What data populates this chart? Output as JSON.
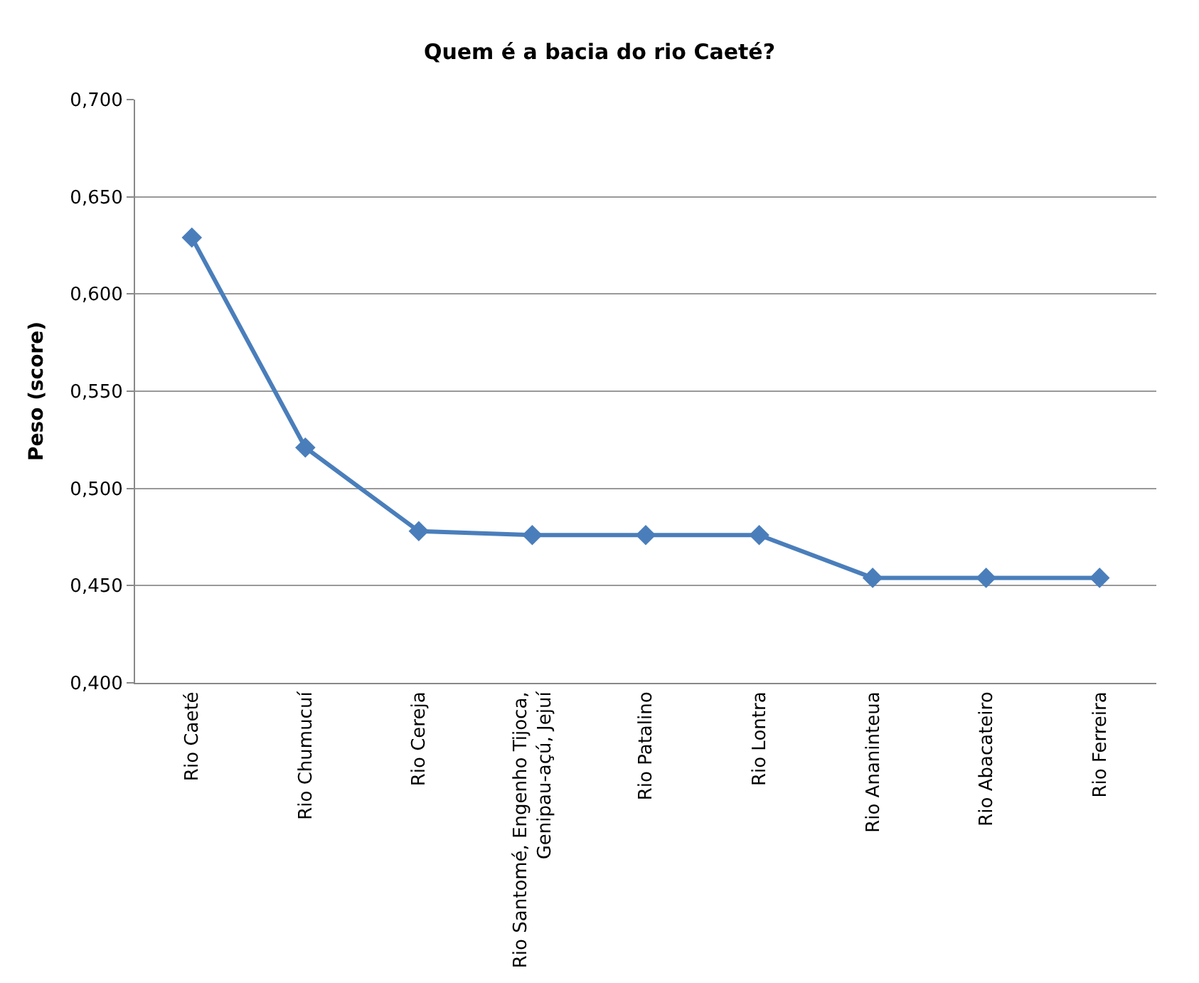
{
  "chart_data": {
    "type": "line",
    "title": "Quem é a bacia do rio Caeté?",
    "ylabel": "Peso (score)",
    "categories": [
      "Rio Caeté",
      "Rio Chumucuí",
      "Rio Cereja",
      "Rio Santomé, Engenho Tijoca,\nGenipau-açú, Jejuí",
      "Rio Patalino",
      "Rio Lontra",
      "Rio Ananinteua",
      "Rio Abacateiro",
      "Rio Ferreira"
    ],
    "series": [
      {
        "color": "#4a7ebb",
        "values": [
          0.629,
          0.521,
          0.478,
          0.476,
          0.476,
          0.476,
          0.454,
          0.454,
          0.454
        ]
      }
    ],
    "ylim": [
      0.4,
      0.7
    ],
    "yticks": [
      {
        "value": 0.4,
        "label": "0,400"
      },
      {
        "value": 0.45,
        "label": "0,450"
      },
      {
        "value": 0.5,
        "label": "0,500"
      },
      {
        "value": 0.55,
        "label": "0,550"
      },
      {
        "value": 0.6,
        "label": "0,600"
      },
      {
        "value": 0.65,
        "label": "0,650"
      },
      {
        "value": 0.7,
        "label": "0,700"
      }
    ],
    "grid": "y",
    "legend": false,
    "marker": "diamond",
    "line_style": "solid"
  }
}
